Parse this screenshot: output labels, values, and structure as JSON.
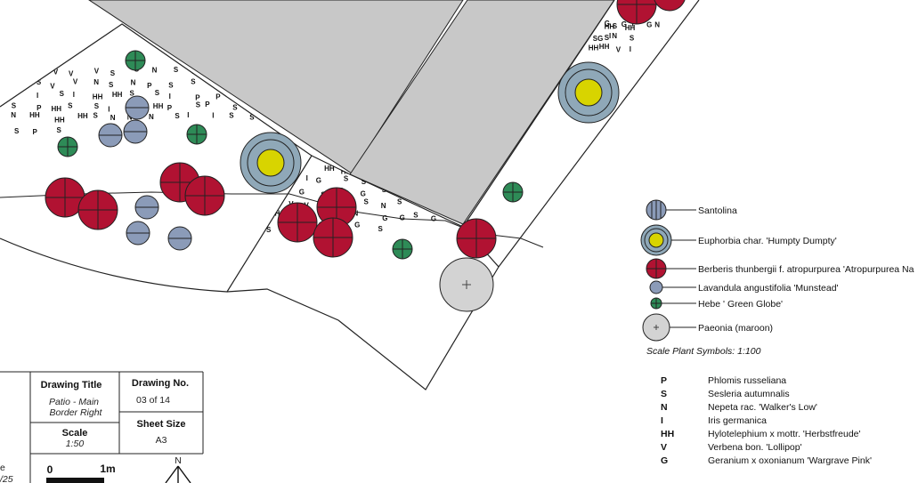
{
  "title_block": {
    "drawing_title": {
      "label": "Drawing Title",
      "line1": "Patio - Main",
      "line2": "Border Right"
    },
    "drawing_no": {
      "label": "Drawing No.",
      "value": "03 of 14"
    },
    "scale": {
      "label": "Scale",
      "value": "1:50"
    },
    "sheet_size": {
      "label": "Sheet Size",
      "value": "A3"
    },
    "scale_bar": {
      "start": "0",
      "end": "1m"
    },
    "north": "N",
    "clipped_left": [
      "e",
      "/25"
    ]
  },
  "plant_legend": [
    {
      "name": "Santolina",
      "icon": "santolina-icon"
    },
    {
      "name": "Euphorbia char. 'Humpty Dumpty'",
      "icon": "euphorbia-icon"
    },
    {
      "name": "Berberis thunbergii f. atropurpurea 'Atropurpurea Na",
      "icon": "berberis-icon"
    },
    {
      "name": "Lavandula angustifolia 'Munstead'",
      "icon": "lavandula-icon"
    },
    {
      "name": "Hebe ' Green Globe'",
      "icon": "hebe-icon"
    },
    {
      "name": "Paeonia (maroon)",
      "icon": "paeonia-icon"
    }
  ],
  "scale_note": "Scale Plant Symbols: 1:100",
  "code_legend": [
    {
      "code": "P",
      "name": "Phlomis russeliana"
    },
    {
      "code": "S",
      "name": "Sesleria autumnalis"
    },
    {
      "code": "N",
      "name": "Nepeta rac. 'Walker's Low'"
    },
    {
      "code": "I",
      "name": "Iris germanica"
    },
    {
      "code": "HH",
      "name": "Hylotelephium x mottr. 'Herbstfreude'"
    },
    {
      "code": "V",
      "name": "Verbena bon. 'Lollipop'"
    },
    {
      "code": "G",
      "name": "Geranium x oxonianum 'Wargrave Pink'"
    }
  ],
  "colors": {
    "berberis": "#b11232",
    "santolina": "#8b9bb8",
    "euphorbia_ring": "#8fa8b8",
    "euphorbia_core": "#d8d400",
    "hebe": "#2e8b57",
    "paeonia": "#d3d3d3",
    "paved": "#c8c8c8"
  },
  "scatter_codes": {
    "left_bed": [
      "V",
      "V",
      "V",
      "V",
      "V",
      "S",
      "S",
      "N",
      "S",
      "HH",
      "HH",
      "V",
      "V",
      "S",
      "S",
      "S",
      "V",
      "V",
      "N",
      "S",
      "N",
      "P",
      "S",
      "S",
      "I",
      "HH",
      "HH",
      "I",
      "N",
      "I",
      "S",
      "I",
      "HH",
      "HH",
      "S",
      "S",
      "I",
      "P",
      "P",
      "S",
      "I",
      "S",
      "S",
      "P",
      "HH",
      "S",
      "S",
      "I",
      "HH",
      "HH",
      "P",
      "S",
      "P",
      "S",
      "S",
      "I",
      "N",
      "HH",
      "HH",
      "HH",
      "S",
      "N",
      "N",
      "N",
      "S",
      "I",
      "I",
      "S",
      "S",
      "HH",
      "S",
      "P",
      "S"
    ],
    "middle_bed": [
      "N",
      "S",
      "S",
      "I",
      "HH",
      "HH",
      "S",
      "V",
      "V",
      "V",
      "V",
      "S",
      "I",
      "V",
      "V",
      "I",
      "G",
      "S",
      "S",
      "N",
      "S",
      "S",
      "S",
      "I",
      "HH",
      "HH",
      "V",
      "G",
      "S",
      "G",
      "G",
      "S",
      "S",
      "S",
      "S",
      "I",
      "HH",
      "HH",
      "V",
      "V",
      "V",
      "G",
      "S",
      "N",
      "S",
      "S",
      "S",
      "N",
      "HH",
      "HH",
      "S",
      "I",
      "S",
      "S",
      "N",
      "G",
      "G",
      "S",
      "G",
      "G",
      "S",
      "S",
      "N",
      "S",
      "G",
      "V",
      "G",
      "S"
    ],
    "right_strip": [
      "G",
      "G",
      "I",
      "N",
      "I",
      "G",
      "HH",
      "S",
      "HH",
      "S",
      "HH",
      "HH",
      "HH",
      "G",
      "HH",
      "HH",
      "HH",
      "G",
      "SG",
      "S",
      "N",
      "S",
      "V",
      "V",
      "I",
      "G",
      "V",
      "V",
      "I",
      "HH",
      "HH",
      "V",
      "I",
      "HH",
      "S",
      "V",
      "HH",
      "I",
      "S"
    ],
    "top_right": [
      "G",
      "G",
      "I",
      "G",
      "N",
      "I"
    ]
  }
}
